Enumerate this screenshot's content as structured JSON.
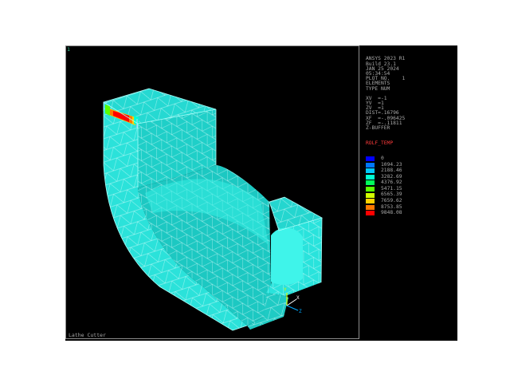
{
  "window_number": "1",
  "info": {
    "lines": [
      "ANSYS 2023 R1",
      "Build 23.1",
      "JAN 25 2024",
      "05:34:54",
      "PLOT NO.    1",
      "ELEMENTS",
      "TYPE NUM",
      "",
      "XV  =-1",
      "YV  =1",
      "ZV  =1",
      "DIST=.16796",
      "XF  =-.096425",
      "ZF  =-.11811",
      "Z-BUFFER"
    ],
    "legend_title": "ROLF_TEMP",
    "legend": [
      {
        "label": "0",
        "color": "#0000ff"
      },
      {
        "label": "1094.23",
        "color": "#0077ff"
      },
      {
        "label": "2188.46",
        "color": "#00c8ff"
      },
      {
        "label": "3282.69",
        "color": "#00ffd2"
      },
      {
        "label": "4376.92",
        "color": "#00ff5a"
      },
      {
        "label": "5471.15",
        "color": "#5aff00"
      },
      {
        "label": "6565.39",
        "color": "#d2ff00"
      },
      {
        "label": "7659.62",
        "color": "#ffd200"
      },
      {
        "label": "8753.85",
        "color": "#ff7800"
      },
      {
        "label": "9848.08",
        "color": "#ff0000"
      }
    ]
  },
  "caption": "Lathe Cutter",
  "colors": {
    "mesh_light": "#2ee9e0",
    "mesh_mid": "#20d2cb",
    "mesh_dark": "#17b7b1",
    "mesh_lines": "#e8ffff"
  }
}
